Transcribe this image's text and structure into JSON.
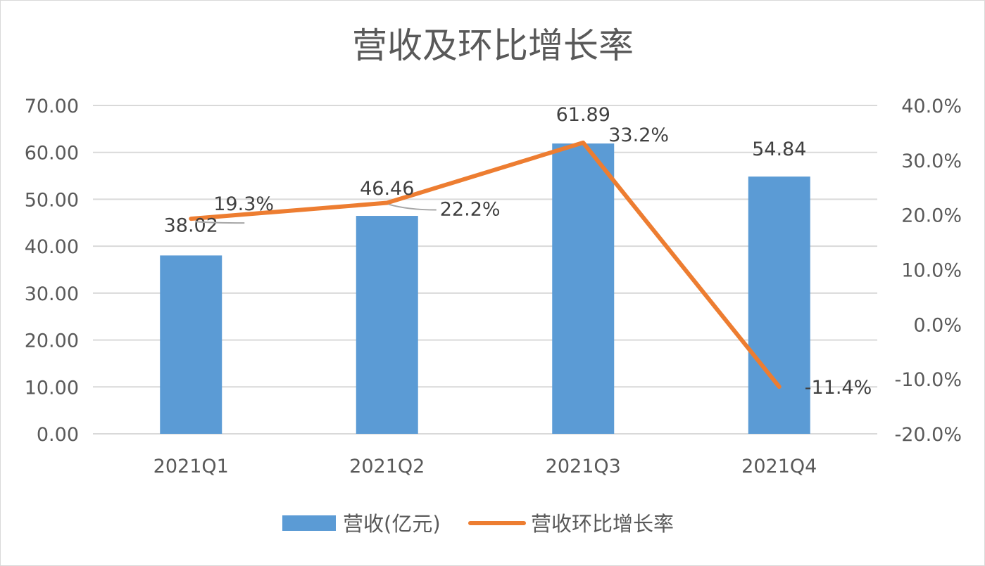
{
  "chart_data": {
    "type": "bar",
    "title": "营收及环比增长率",
    "categories": [
      "2021Q1",
      "2021Q2",
      "2021Q3",
      "2021Q4"
    ],
    "series": [
      {
        "name": "营收(亿元)",
        "type": "bar",
        "axis": "left",
        "values": [
          38.02,
          46.46,
          61.89,
          54.84
        ],
        "labels": [
          "38.02",
          "46.46",
          "61.89",
          "54.84"
        ]
      },
      {
        "name": "营收环比增长率",
        "type": "line",
        "axis": "right",
        "values": [
          19.3,
          22.2,
          33.2,
          -11.4
        ],
        "labels": [
          "19.3%",
          "22.2%",
          "33.2%",
          "-11.4%"
        ]
      }
    ],
    "y_left": {
      "range": [
        0,
        70
      ],
      "ticks": [
        "0.00",
        "10.00",
        "20.00",
        "30.00",
        "40.00",
        "50.00",
        "60.00",
        "70.00"
      ]
    },
    "y_right": {
      "range": [
        -20,
        40
      ],
      "ticks": [
        "-20.0%",
        "-10.0%",
        "0.0%",
        "10.0%",
        "20.0%",
        "30.0%",
        "40.0%"
      ]
    },
    "grid": true,
    "legend_position": "bottom",
    "colors": {
      "bar": "#5b9bd5",
      "line": "#ed7d31",
      "grid": "#d9d9d9"
    }
  }
}
